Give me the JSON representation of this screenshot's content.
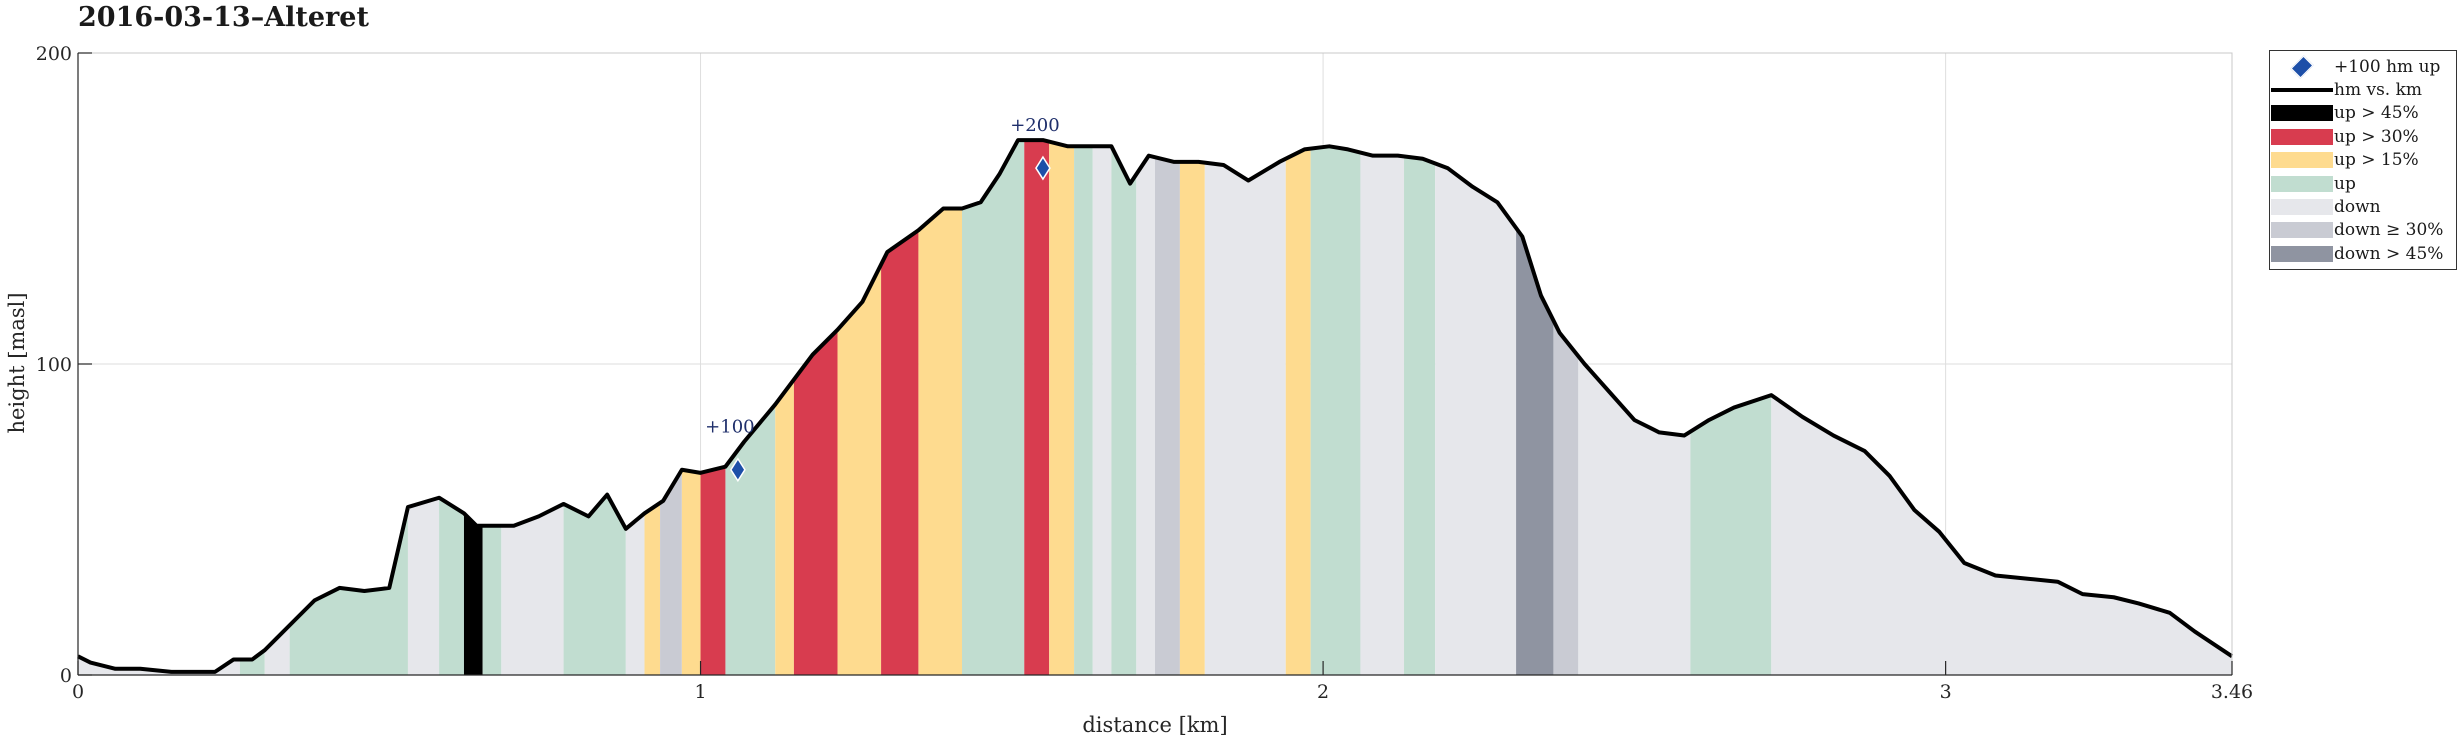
{
  "title": "2016-03-13–Alteret",
  "chart_data": {
    "type": "area",
    "title": "2016-03-13–Alteret",
    "xlabel": "distance [km]",
    "ylabel": "height [masl]",
    "xlim": [
      0,
      3.46
    ],
    "ylim": [
      0,
      200
    ],
    "xticks": [
      0,
      1,
      2,
      3,
      3.46
    ],
    "xtick_labels": [
      "0",
      "1",
      "2",
      "3",
      "3.46"
    ],
    "yticks": [
      0,
      100,
      200
    ],
    "ytick_labels": [
      "0",
      "100",
      "200"
    ],
    "grid": true,
    "legend_position": "outside-top-right",
    "profile": {
      "name": "hm vs. km",
      "x": [
        0,
        0.02,
        0.06,
        0.1,
        0.15,
        0.18,
        0.22,
        0.25,
        0.28,
        0.3,
        0.32,
        0.35,
        0.38,
        0.42,
        0.46,
        0.5,
        0.53,
        0.58,
        0.62,
        0.64,
        0.675,
        0.7,
        0.74,
        0.78,
        0.82,
        0.85,
        0.88,
        0.91,
        0.94,
        0.97,
        1.0,
        1.04,
        1.07,
        1.12,
        1.15,
        1.18,
        1.22,
        1.26,
        1.3,
        1.35,
        1.39,
        1.42,
        1.45,
        1.48,
        1.51,
        1.55,
        1.59,
        1.62,
        1.66,
        1.69,
        1.72,
        1.76,
        1.8,
        1.84,
        1.88,
        1.93,
        1.97,
        2.01,
        2.04,
        2.08,
        2.12,
        2.16,
        2.2,
        2.24,
        2.28,
        2.32,
        2.35,
        2.38,
        2.42,
        2.46,
        2.5,
        2.54,
        2.58,
        2.62,
        2.66,
        2.72,
        2.77,
        2.82,
        2.87,
        2.91,
        2.95,
        2.99,
        3.03,
        3.08,
        3.13,
        3.18,
        3.22,
        3.27,
        3.31,
        3.36,
        3.4,
        3.46
      ],
      "y": [
        6,
        4,
        2,
        2,
        1,
        1,
        1,
        5,
        5,
        8,
        12,
        18,
        24,
        28,
        27,
        28,
        54,
        57,
        52,
        48,
        48,
        48,
        51,
        55,
        51,
        58,
        47,
        52,
        56,
        66,
        65,
        67,
        75,
        87,
        95,
        103,
        111,
        120,
        136,
        143,
        150,
        150,
        152,
        161,
        172,
        172,
        170,
        170,
        170,
        158,
        167,
        165,
        165,
        164,
        159,
        165,
        169,
        170,
        169,
        167,
        167,
        166,
        163,
        157,
        152,
        141,
        122,
        110,
        100,
        91,
        82,
        78,
        77,
        82,
        86,
        90,
        83,
        77,
        72,
        64,
        53,
        46,
        36,
        32,
        31,
        30,
        26,
        25,
        23,
        20,
        14,
        6
      ]
    },
    "segments": [
      {
        "from": 0.0,
        "to": 0.26,
        "class": "down"
      },
      {
        "from": 0.26,
        "to": 0.3,
        "class": "up"
      },
      {
        "from": 0.3,
        "to": 0.34,
        "class": "down"
      },
      {
        "from": 0.34,
        "to": 0.53,
        "class": "up"
      },
      {
        "from": 0.53,
        "to": 0.58,
        "class": "down"
      },
      {
        "from": 0.58,
        "to": 0.62,
        "class": "up"
      },
      {
        "from": 0.62,
        "to": 0.65,
        "class": "up_gt_45"
      },
      {
        "from": 0.65,
        "to": 0.68,
        "class": "up"
      },
      {
        "from": 0.68,
        "to": 0.78,
        "class": "down"
      },
      {
        "from": 0.78,
        "to": 0.88,
        "class": "up"
      },
      {
        "from": 0.88,
        "to": 0.91,
        "class": "down"
      },
      {
        "from": 0.91,
        "to": 0.935,
        "class": "up_gt_15"
      },
      {
        "from": 0.935,
        "to": 0.97,
        "class": "down_ge_30"
      },
      {
        "from": 0.97,
        "to": 1.0,
        "class": "up_gt_15"
      },
      {
        "from": 1.0,
        "to": 1.04,
        "class": "up_gt_30"
      },
      {
        "from": 1.04,
        "to": 1.12,
        "class": "up"
      },
      {
        "from": 1.12,
        "to": 1.15,
        "class": "up_gt_15"
      },
      {
        "from": 1.15,
        "to": 1.22,
        "class": "up_gt_30"
      },
      {
        "from": 1.22,
        "to": 1.29,
        "class": "up_gt_15"
      },
      {
        "from": 1.29,
        "to": 1.35,
        "class": "up_gt_30"
      },
      {
        "from": 1.35,
        "to": 1.42,
        "class": "up_gt_15"
      },
      {
        "from": 1.42,
        "to": 1.52,
        "class": "up"
      },
      {
        "from": 1.52,
        "to": 1.56,
        "class": "up_gt_30"
      },
      {
        "from": 1.56,
        "to": 1.6,
        "class": "up_gt_15"
      },
      {
        "from": 1.6,
        "to": 1.63,
        "class": "up"
      },
      {
        "from": 1.63,
        "to": 1.66,
        "class": "down"
      },
      {
        "from": 1.66,
        "to": 1.7,
        "class": "up"
      },
      {
        "from": 1.7,
        "to": 1.73,
        "class": "down"
      },
      {
        "from": 1.73,
        "to": 1.77,
        "class": "down_ge_30"
      },
      {
        "from": 1.77,
        "to": 1.81,
        "class": "up_gt_15"
      },
      {
        "from": 1.81,
        "to": 1.94,
        "class": "down"
      },
      {
        "from": 1.94,
        "to": 1.98,
        "class": "up_gt_15"
      },
      {
        "from": 1.98,
        "to": 2.06,
        "class": "up"
      },
      {
        "from": 2.06,
        "to": 2.13,
        "class": "down"
      },
      {
        "from": 2.13,
        "to": 2.18,
        "class": "up"
      },
      {
        "from": 2.18,
        "to": 2.31,
        "class": "down"
      },
      {
        "from": 2.31,
        "to": 2.37,
        "class": "down_gt_45"
      },
      {
        "from": 2.37,
        "to": 2.41,
        "class": "down_ge_30"
      },
      {
        "from": 2.41,
        "to": 2.59,
        "class": "down"
      },
      {
        "from": 2.59,
        "to": 2.72,
        "class": "up"
      },
      {
        "from": 2.72,
        "to": 3.46,
        "class": "down"
      }
    ],
    "markers": [
      {
        "x": 1.06,
        "y": 66,
        "label": "+100"
      },
      {
        "x": 1.55,
        "y": 163,
        "label": "+200"
      }
    ],
    "classes": {
      "up_gt_45": {
        "label": "up > 45%",
        "color": "#000000"
      },
      "up_gt_30": {
        "label": "up > 30%",
        "color": "#d83c4f"
      },
      "up_gt_15": {
        "label": "up > 15%",
        "color": "#fedb8f"
      },
      "up": {
        "label": "up",
        "color": "#c1ddd0"
      },
      "down": {
        "label": "down",
        "color": "#e6e7eb"
      },
      "down_ge_30": {
        "label": "down ≥ 30%",
        "color": "#c9cbd3"
      },
      "down_gt_45": {
        "label": "down > 45%",
        "color": "#8f94a1"
      }
    },
    "legend": [
      {
        "kind": "marker",
        "label": "+100 hm up",
        "color": "#1d4fa8"
      },
      {
        "kind": "line",
        "label": "hm vs. km",
        "color": "#000000"
      },
      {
        "kind": "swatch",
        "label": "up > 45%",
        "color": "#000000"
      },
      {
        "kind": "swatch",
        "label": "up > 30%",
        "color": "#d83c4f"
      },
      {
        "kind": "swatch",
        "label": "up > 15%",
        "color": "#fedb8f"
      },
      {
        "kind": "swatch",
        "label": "up",
        "color": "#c1ddd0"
      },
      {
        "kind": "swatch",
        "label": "down",
        "color": "#e6e7eb"
      },
      {
        "kind": "swatch",
        "label": "down ≥ 30%",
        "color": "#c9cbd3"
      },
      {
        "kind": "swatch",
        "label": "down > 45%",
        "color": "#8f94a1"
      }
    ]
  }
}
